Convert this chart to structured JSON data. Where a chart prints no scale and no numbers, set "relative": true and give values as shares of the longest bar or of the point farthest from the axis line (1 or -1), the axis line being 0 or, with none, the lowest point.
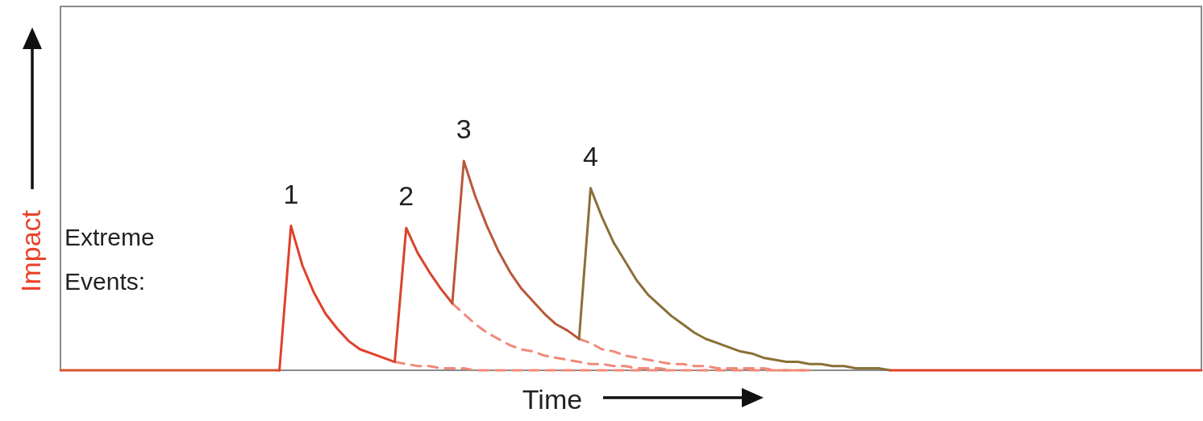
{
  "chart_data": {
    "type": "line",
    "relative": true,
    "xlabel": "Time",
    "ylabel": "Impact",
    "legend": false,
    "grid": false,
    "marker": "none",
    "annotations": [
      "Extreme Events:"
    ],
    "categories": [
      null,
      null,
      null,
      null,
      null,
      null,
      null,
      null,
      null,
      null,
      null,
      null,
      null,
      null,
      null,
      null,
      null,
      null,
      null,
      null,
      null,
      null,
      null,
      null,
      null,
      null,
      null,
      null,
      null,
      null,
      null,
      null,
      null,
      null,
      null,
      null,
      null,
      null,
      null,
      null,
      null,
      null,
      null,
      null,
      null,
      null,
      null,
      null,
      null,
      null,
      null,
      null,
      null,
      null,
      null,
      null,
      null,
      null,
      null,
      null,
      null,
      null,
      null,
      null,
      null,
      null,
      null,
      null,
      null,
      null,
      null,
      null,
      null,
      null,
      null,
      null,
      null,
      null,
      null,
      null,
      null,
      null,
      null,
      null,
      null,
      null,
      null,
      null,
      null,
      null,
      null,
      null,
      null,
      null,
      null,
      null,
      null,
      null,
      null,
      null
    ],
    "series": [
      {
        "color": "#f08a78",
        "line_style": "dashed",
        "values": [
          null,
          null,
          null,
          null,
          null,
          null,
          null,
          null,
          null,
          null,
          null,
          null,
          null,
          null,
          null,
          null,
          null,
          null,
          null,
          null,
          null,
          null,
          null,
          null,
          null,
          null,
          null,
          null,
          null,
          0.04,
          0.03,
          0.02,
          0.02,
          0.01,
          0.01,
          0.01,
          0,
          0,
          0,
          0,
          0,
          0,
          0,
          0,
          0,
          0,
          0,
          0,
          0,
          0,
          0,
          0,
          0,
          0,
          0,
          0,
          0,
          0,
          0,
          0,
          0,
          0,
          0,
          0,
          0,
          0,
          null,
          null,
          null,
          null,
          null,
          null,
          null,
          null,
          null,
          null,
          null,
          null,
          null,
          null,
          null,
          null,
          null,
          null,
          null,
          null,
          null,
          null,
          null,
          null,
          null,
          null,
          null,
          null,
          null,
          null,
          null,
          null,
          null,
          null
        ]
      },
      {
        "color": "#f08a78",
        "line_style": "dashed",
        "values": [
          null,
          null,
          null,
          null,
          null,
          null,
          null,
          null,
          null,
          null,
          null,
          null,
          null,
          null,
          null,
          null,
          null,
          null,
          null,
          null,
          null,
          null,
          null,
          null,
          null,
          null,
          null,
          null,
          null,
          null,
          null,
          null,
          null,
          null,
          0.32,
          0.27,
          0.22,
          0.18,
          0.15,
          0.12,
          0.1,
          0.09,
          0.07,
          0.06,
          0.05,
          0.04,
          0.03,
          0.03,
          0.02,
          0.02,
          0.01,
          0.01,
          0.01,
          0,
          null,
          null,
          null,
          null,
          null,
          null,
          null,
          null,
          null,
          null,
          null,
          null,
          null,
          null,
          null,
          null,
          null,
          null,
          null,
          null,
          null,
          null,
          null,
          null,
          null,
          null,
          null,
          null,
          null,
          null,
          null,
          null,
          null,
          null,
          null,
          null,
          null,
          null,
          null,
          null,
          null,
          null,
          null,
          null,
          null,
          null
        ]
      },
      {
        "color": "#f08a78",
        "line_style": "dashed",
        "values": [
          null,
          null,
          null,
          null,
          null,
          null,
          null,
          null,
          null,
          null,
          null,
          null,
          null,
          null,
          null,
          null,
          null,
          null,
          null,
          null,
          null,
          null,
          null,
          null,
          null,
          null,
          null,
          null,
          null,
          null,
          null,
          null,
          null,
          null,
          null,
          null,
          null,
          null,
          null,
          null,
          null,
          null,
          null,
          null,
          null,
          0.15,
          0.13,
          0.1,
          0.09,
          0.07,
          0.06,
          0.05,
          0.04,
          0.03,
          0.03,
          0.02,
          0.02,
          0.01,
          0.01,
          0.01,
          0.01,
          0.01,
          0,
          0,
          0,
          0,
          null,
          null,
          null,
          null,
          null,
          null,
          null,
          null,
          null,
          null,
          null,
          null,
          null,
          null,
          null,
          null,
          null,
          null,
          null,
          null,
          null,
          null,
          null,
          null,
          null,
          null,
          null,
          null,
          null,
          null,
          null,
          null,
          null,
          null
        ]
      },
      {
        "color": "#d9542f",
        "values": [
          0,
          0,
          0,
          0,
          0,
          0,
          0,
          0,
          0,
          0,
          0,
          0,
          0,
          0,
          0,
          0,
          0,
          0,
          0,
          0,
          null,
          null,
          null,
          null,
          null,
          null,
          null,
          null,
          null,
          null,
          null,
          null,
          null,
          null,
          null,
          null,
          null,
          null,
          null,
          null,
          null,
          null,
          null,
          null,
          null,
          null,
          null,
          null,
          null,
          null,
          null,
          null,
          null,
          null,
          null,
          null,
          null,
          null,
          null,
          null,
          null,
          null,
          null,
          null,
          null,
          null,
          null,
          null,
          null,
          null,
          null,
          null,
          null,
          null,
          null,
          null,
          null,
          null,
          null,
          null,
          null,
          null,
          null,
          null,
          null,
          null,
          null,
          null,
          null,
          null,
          null,
          null,
          null,
          null,
          null,
          null,
          null,
          null,
          null,
          null
        ]
      },
      {
        "name": "1",
        "color": "#e2402a",
        "values": [
          null,
          null,
          null,
          null,
          null,
          null,
          null,
          null,
          null,
          null,
          null,
          null,
          null,
          null,
          null,
          null,
          null,
          null,
          null,
          0,
          0.69,
          0.5,
          0.37,
          0.27,
          0.2,
          0.14,
          0.1,
          0.08,
          0.06,
          0.04,
          null,
          null,
          null,
          null,
          null,
          null,
          null,
          null,
          null,
          null,
          null,
          null,
          null,
          null,
          null,
          null,
          null,
          null,
          null,
          null,
          null,
          null,
          null,
          null,
          null,
          null,
          null,
          null,
          null,
          null,
          null,
          null,
          null,
          null,
          null,
          null,
          null,
          null,
          null,
          null,
          null,
          null,
          null,
          null,
          null,
          null,
          null,
          null,
          null,
          null,
          null,
          null,
          null,
          null,
          null,
          null,
          null,
          null,
          null,
          null,
          null,
          null,
          null,
          null,
          null,
          null,
          null,
          null,
          null,
          null
        ]
      },
      {
        "name": "2",
        "color": "#d8452c",
        "values": [
          null,
          null,
          null,
          null,
          null,
          null,
          null,
          null,
          null,
          null,
          null,
          null,
          null,
          null,
          null,
          null,
          null,
          null,
          null,
          null,
          null,
          null,
          null,
          null,
          null,
          null,
          null,
          null,
          null,
          0.04,
          0.68,
          0.56,
          0.47,
          0.39,
          0.32,
          null,
          null,
          null,
          null,
          null,
          null,
          null,
          null,
          null,
          null,
          null,
          null,
          null,
          null,
          null,
          null,
          null,
          null,
          null,
          null,
          null,
          null,
          null,
          null,
          null,
          null,
          null,
          null,
          null,
          null,
          null,
          null,
          null,
          null,
          null,
          null,
          null,
          null,
          null,
          null,
          null,
          null,
          null,
          null,
          null,
          null,
          null,
          null,
          null,
          null,
          null,
          null,
          null,
          null,
          null,
          null,
          null,
          null,
          null,
          null,
          null,
          null,
          null,
          null,
          null
        ]
      },
      {
        "name": "3",
        "color": "#b9583a",
        "values": [
          null,
          null,
          null,
          null,
          null,
          null,
          null,
          null,
          null,
          null,
          null,
          null,
          null,
          null,
          null,
          null,
          null,
          null,
          null,
          null,
          null,
          null,
          null,
          null,
          null,
          null,
          null,
          null,
          null,
          null,
          null,
          null,
          null,
          null,
          0.32,
          1.0,
          0.83,
          0.69,
          0.57,
          0.47,
          0.39,
          0.33,
          0.27,
          0.22,
          0.19,
          0.15,
          null,
          null,
          null,
          null,
          null,
          null,
          null,
          null,
          null,
          null,
          null,
          null,
          null,
          null,
          null,
          null,
          null,
          null,
          null,
          null,
          null,
          null,
          null,
          null,
          null,
          null,
          null,
          null,
          null,
          null,
          null,
          null,
          null,
          null,
          null,
          null,
          null,
          null,
          null,
          null,
          null,
          null,
          null,
          null,
          null,
          null,
          null,
          null,
          null,
          null,
          null,
          null,
          null,
          null
        ]
      },
      {
        "name": "4",
        "color": "#8a7038",
        "values": [
          null,
          null,
          null,
          null,
          null,
          null,
          null,
          null,
          null,
          null,
          null,
          null,
          null,
          null,
          null,
          null,
          null,
          null,
          null,
          null,
          null,
          null,
          null,
          null,
          null,
          null,
          null,
          null,
          null,
          null,
          null,
          null,
          null,
          null,
          null,
          null,
          null,
          null,
          null,
          null,
          null,
          null,
          null,
          null,
          null,
          0.15,
          0.87,
          0.73,
          0.61,
          0.52,
          0.43,
          0.36,
          0.31,
          0.26,
          0.22,
          0.18,
          0.15,
          0.13,
          0.11,
          0.09,
          0.08,
          0.06,
          0.05,
          0.04,
          0.04,
          0.03,
          0.03,
          0.02,
          0.02,
          0.01,
          0.01,
          0.01,
          0,
          null,
          null,
          null,
          null,
          null,
          null,
          null,
          null,
          null,
          null,
          null,
          null,
          null,
          null,
          null,
          null,
          null,
          null,
          null,
          null,
          null,
          null,
          null,
          null,
          null,
          null,
          null
        ]
      },
      {
        "color": "#e0432a",
        "values": [
          null,
          null,
          null,
          null,
          null,
          null,
          null,
          null,
          null,
          null,
          null,
          null,
          null,
          null,
          null,
          null,
          null,
          null,
          null,
          null,
          null,
          null,
          null,
          null,
          null,
          null,
          null,
          null,
          null,
          null,
          null,
          null,
          null,
          null,
          null,
          null,
          null,
          null,
          null,
          null,
          null,
          null,
          null,
          null,
          null,
          null,
          null,
          null,
          null,
          null,
          null,
          null,
          null,
          null,
          null,
          null,
          null,
          null,
          null,
          null,
          null,
          null,
          null,
          null,
          null,
          null,
          null,
          null,
          null,
          null,
          null,
          null,
          0,
          0,
          0,
          0,
          0,
          0,
          0,
          0,
          0,
          0,
          0,
          0,
          0,
          0,
          0,
          0,
          0,
          0,
          0,
          0,
          0,
          0,
          0,
          0,
          0,
          0,
          0,
          0
        ]
      }
    ]
  }
}
